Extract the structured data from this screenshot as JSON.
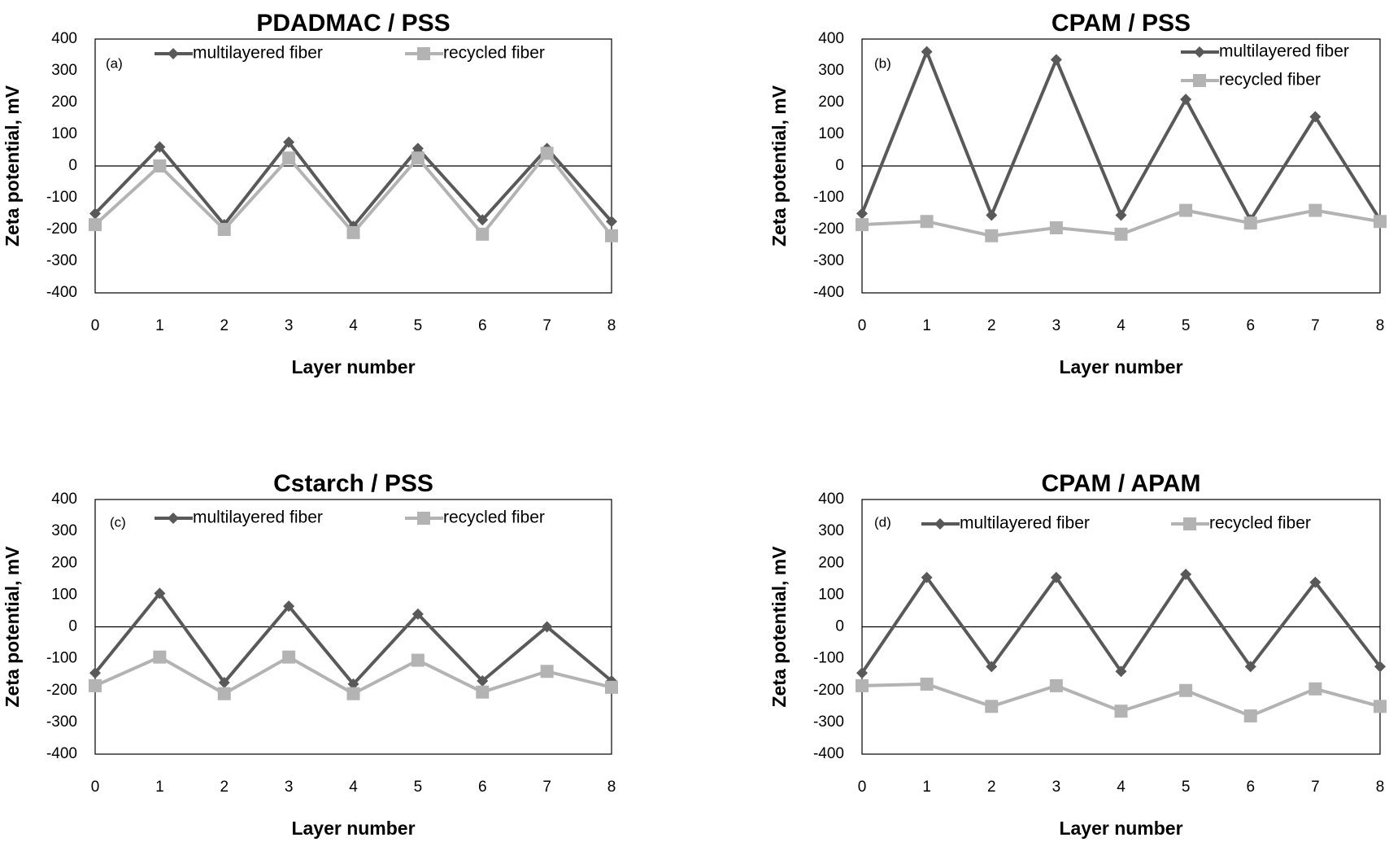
{
  "chart_data": [
    {
      "type": "line",
      "panel": "(a)",
      "title": "PDADMAC / PSS",
      "xlabel": "Layer number",
      "ylabel": "Zeta potential, mV",
      "x": [
        0,
        1,
        2,
        3,
        4,
        5,
        6,
        7,
        8
      ],
      "ylim": [
        -400,
        400
      ],
      "yticks": [
        400,
        300,
        200,
        100,
        0,
        -100,
        -200,
        -300,
        -400
      ],
      "legend": "top",
      "series": [
        {
          "name": "multilayered fiber",
          "marker": "diamond",
          "color": "#595959",
          "values": [
            -150,
            60,
            -185,
            75,
            -190,
            55,
            -170,
            55,
            -175
          ]
        },
        {
          "name": "recycled fiber",
          "marker": "square",
          "color": "#b3b3b3",
          "values": [
            -185,
            0,
            -200,
            25,
            -210,
            25,
            -215,
            40,
            -220
          ]
        }
      ]
    },
    {
      "type": "line",
      "panel": "(b)",
      "title": "CPAM / PSS",
      "xlabel": "Layer number",
      "ylabel": "Zeta potential, mV",
      "x": [
        0,
        1,
        2,
        3,
        4,
        5,
        6,
        7,
        8
      ],
      "ylim": [
        -400,
        400
      ],
      "yticks": [
        400,
        300,
        200,
        100,
        0,
        -100,
        -200,
        -300,
        -400
      ],
      "legend": "top-right",
      "series": [
        {
          "name": "multilayered fiber",
          "marker": "diamond",
          "color": "#595959",
          "values": [
            -150,
            360,
            -155,
            335,
            -155,
            210,
            -170,
            155,
            -170
          ]
        },
        {
          "name": "recycled fiber",
          "marker": "square",
          "color": "#b3b3b3",
          "values": [
            -185,
            -175,
            -220,
            -195,
            -215,
            -140,
            -180,
            -140,
            -175
          ]
        }
      ]
    },
    {
      "type": "line",
      "panel": "(c)",
      "title": "Cstarch / PSS",
      "xlabel": "Layer number",
      "ylabel": "Zeta potential, mV",
      "x": [
        0,
        1,
        2,
        3,
        4,
        5,
        6,
        7,
        8
      ],
      "ylim": [
        -400,
        400
      ],
      "yticks": [
        400,
        300,
        200,
        100,
        0,
        -100,
        -200,
        -300,
        -400
      ],
      "legend": "top",
      "series": [
        {
          "name": "multilayered fiber",
          "marker": "diamond",
          "color": "#595959",
          "values": [
            -145,
            105,
            -175,
            65,
            -180,
            40,
            -170,
            0,
            -170
          ]
        },
        {
          "name": "recycled fiber",
          "marker": "square",
          "color": "#b3b3b3",
          "values": [
            -185,
            -95,
            -210,
            -95,
            -210,
            -105,
            -205,
            -140,
            -190
          ]
        }
      ]
    },
    {
      "type": "line",
      "panel": "(d)",
      "title": "CPAM / APAM",
      "xlabel": "Layer number",
      "ylabel": "Zeta potential, mV",
      "x": [
        0,
        1,
        2,
        3,
        4,
        5,
        6,
        7,
        8
      ],
      "ylim": [
        -400,
        400
      ],
      "yticks": [
        400,
        300,
        200,
        100,
        0,
        -100,
        -200,
        -300,
        -400
      ],
      "legend": "top",
      "series": [
        {
          "name": "multilayered fiber",
          "marker": "diamond",
          "color": "#595959",
          "values": [
            -145,
            155,
            -125,
            155,
            -140,
            165,
            -125,
            140,
            -125
          ]
        },
        {
          "name": "recycled fiber",
          "marker": "square",
          "color": "#b3b3b3",
          "values": [
            -185,
            -180,
            -250,
            -185,
            -265,
            -200,
            -280,
            -195,
            -250
          ]
        }
      ]
    }
  ]
}
